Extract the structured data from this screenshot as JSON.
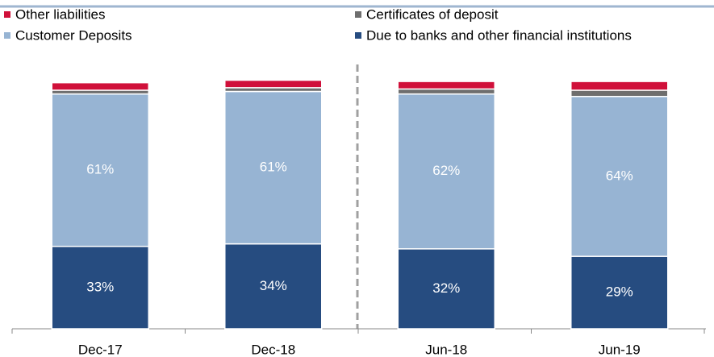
{
  "chart_data": {
    "type": "bar",
    "stacked": true,
    "categories": [
      "Dec-17",
      "Dec-18",
      "Jun-18",
      "Jun-19"
    ],
    "series": [
      {
        "name": "Due to banks and other financial institutions",
        "color": "#264c80",
        "values": [
          33,
          34,
          32,
          29
        ],
        "value_labels": [
          "33%",
          "34%",
          "32%",
          "29%"
        ]
      },
      {
        "name": "Customer Deposits",
        "color": "#97b4d3",
        "values": [
          61,
          61,
          62,
          64
        ],
        "value_labels": [
          "61%",
          "61%",
          "62%",
          "64%"
        ]
      },
      {
        "name": "Certificates of deposit",
        "color": "#6e6e6e",
        "values": [
          1.5,
          1.5,
          2,
          2.5
        ]
      },
      {
        "name": "Other liabilities",
        "color": "#d0103a",
        "values": [
          3,
          3,
          3,
          3.5
        ]
      }
    ],
    "ylim": [
      0,
      100
    ]
  }
}
